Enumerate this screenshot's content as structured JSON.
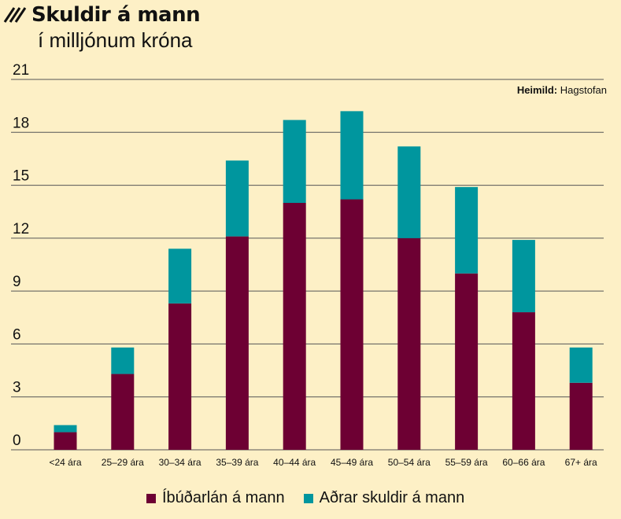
{
  "chart_data": {
    "type": "bar",
    "stacked": true,
    "title": "Skuldir á mann",
    "subtitle": "í milljónum króna",
    "source_label": "Heimild:",
    "source_value": "Hagstofan",
    "categories": [
      "<24 ára",
      "25–29 ára",
      "30–34 ára",
      "35–39 ára",
      "40–44 ára",
      "45–49 ára",
      "50–54 ára",
      "55–59 ára",
      "60–66 ára",
      "67+ ára"
    ],
    "series": [
      {
        "name": "Íbúðarlán á mann",
        "color": "#6d0033",
        "values": [
          1.0,
          4.3,
          8.3,
          12.1,
          14.0,
          14.2,
          12.0,
          10.0,
          7.8,
          3.8
        ]
      },
      {
        "name": "Aðrar skuldir á mann",
        "color": "#00969e",
        "values": [
          0.4,
          1.5,
          3.1,
          4.3,
          4.7,
          5.0,
          5.2,
          4.9,
          4.1,
          2.0
        ]
      }
    ],
    "ylim": [
      0,
      21
    ],
    "yticks": [
      0,
      3,
      6,
      9,
      12,
      15,
      18,
      21
    ],
    "grid": true,
    "legend_position": "bottom"
  }
}
